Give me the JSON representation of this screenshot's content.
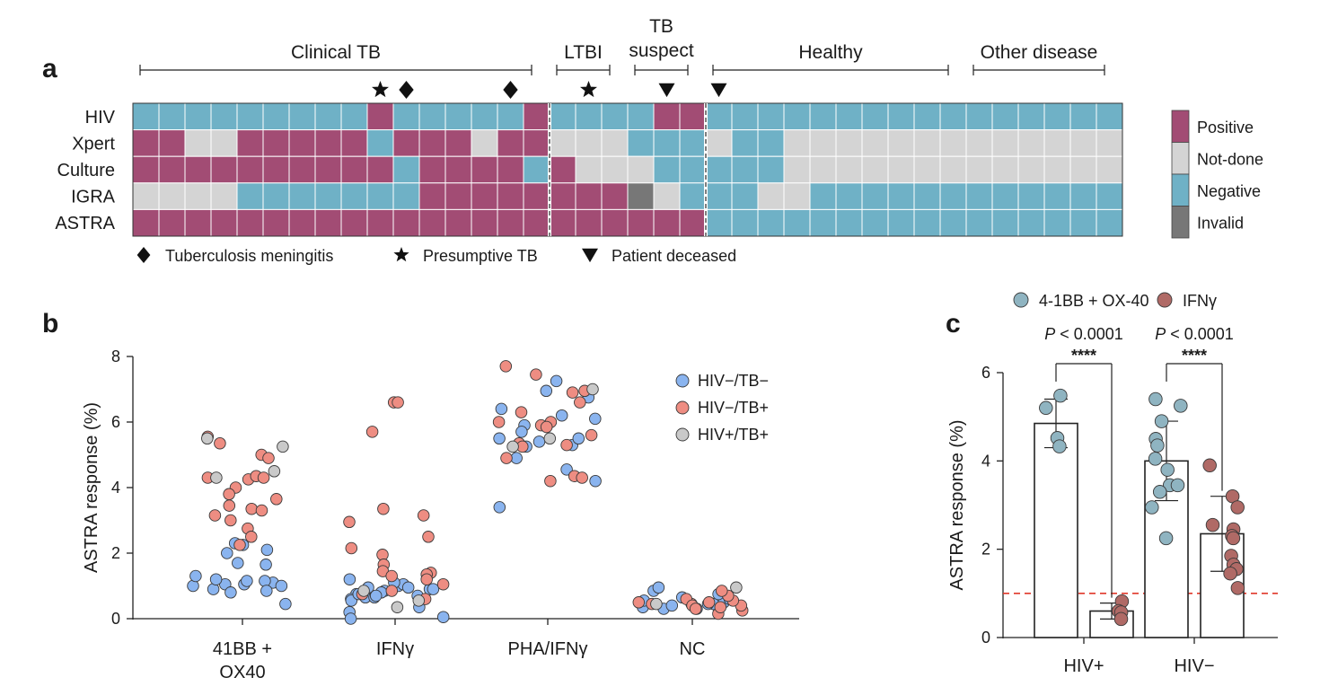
{
  "panel_labels": {
    "a": "a",
    "b": "b",
    "c": "c"
  },
  "colors": {
    "positive": "#a24c74",
    "not_done": "#d4d4d4",
    "negative": "#6fb1c6",
    "invalid": "#777777",
    "hiv_neg_tb_neg": "#8ab4ef",
    "hiv_neg_tb_pos": "#ee8d82",
    "hiv_pos_tb_pos": "#c9c9c9",
    "c_41bb_ox40": "#8fb4c1",
    "c_ifng": "#b06a66",
    "threshold": "#e0382a"
  },
  "chart_data": [
    {
      "type": "heatmap",
      "group_labels": [
        "Clinical TB",
        "LTBI",
        "TB\nsuspect",
        "Healthy",
        "Other disease"
      ],
      "group_sizes": [
        16,
        3,
        3,
        10,
        6
      ],
      "rows": [
        "HIV",
        "Xpert",
        "Culture",
        "IGRA",
        "ASTRA"
      ],
      "legend": [
        "Positive",
        "Not-done",
        "Negative",
        "Invalid"
      ],
      "symbol_legend": [
        {
          "symbol": "diamond",
          "label": "Tuberculosis meningitis"
        },
        {
          "symbol": "star",
          "label": "Presumptive TB"
        },
        {
          "symbol": "triangle-down",
          "label": "Patient deceased"
        }
      ],
      "markers": [
        {
          "column": 9,
          "symbol": "star"
        },
        {
          "column": 10,
          "symbol": "diamond"
        },
        {
          "column": 14,
          "symbol": "diamond"
        },
        {
          "column": 17,
          "symbol": "star"
        },
        {
          "column": 20,
          "symbol": "triangle-down"
        },
        {
          "column": 22,
          "symbol": "triangle-down"
        }
      ],
      "matrix": [
        "NNNNNNNNNPNNNNNPNNNNPPNNNNNNNNNNNNNNNN",
        "PPDDPPPPPNPPPDPPDDDNNNDNNDDDDDDDDDDDDD",
        "PPPPPPPPPPNPPPPNPDDDNNNNNDDDDDDDDDDDDD",
        "DDDDNNNNNNNPPPPPPPPIDNNNDDNNNNNNNNNNNN",
        "PPPPPPPPPPPPPPPPPPPPPPNNNNNNNNNNNNNNNN"
      ]
    },
    {
      "type": "scatter",
      "ylabel": "ASTRA response (%)",
      "ylim": [
        0,
        8
      ],
      "yticks": [
        0,
        2,
        4,
        6,
        8
      ],
      "categories": [
        "41BB +\nOX40",
        "IFNγ",
        "PHA/IFNγ",
        "NC"
      ],
      "series": [
        {
          "name": "HIV−/TB−",
          "points": [
            [
              0,
              1.0
            ],
            [
              0,
              1.05
            ],
            [
              0,
              1.1
            ],
            [
              0,
              1.15
            ],
            [
              0,
              1.0
            ],
            [
              0,
              1.05
            ],
            [
              0,
              1.15
            ],
            [
              0,
              0.8
            ],
            [
              0,
              0.9
            ],
            [
              0,
              1.2
            ],
            [
              0,
              1.3
            ],
            [
              0,
              1.65
            ],
            [
              0,
              2.0
            ],
            [
              0,
              2.3
            ],
            [
              0,
              2.1
            ],
            [
              0,
              0.45
            ],
            [
              0,
              1.7
            ],
            [
              0,
              2.25
            ],
            [
              0,
              0.85
            ],
            [
              1,
              0.65
            ],
            [
              1,
              0.7
            ],
            [
              1,
              0.75
            ],
            [
              1,
              0.85
            ],
            [
              1,
              0.9
            ],
            [
              1,
              0.95
            ],
            [
              1,
              1.0
            ],
            [
              1,
              1.05
            ],
            [
              1,
              1.1
            ],
            [
              1,
              0.6
            ],
            [
              1,
              0.55
            ],
            [
              1,
              0.65
            ],
            [
              1,
              0.95
            ],
            [
              1,
              1.2
            ],
            [
              1,
              0.8
            ],
            [
              1,
              0.35
            ],
            [
              1,
              0.2
            ],
            [
              1,
              0.05
            ],
            [
              1,
              0.0
            ],
            [
              1,
              0.7
            ],
            [
              1,
              0.9
            ],
            [
              1,
              0.75
            ],
            [
              2,
              7.25
            ],
            [
              2,
              6.95
            ],
            [
              2,
              6.75
            ],
            [
              2,
              6.4
            ],
            [
              2,
              6.1
            ],
            [
              2,
              5.9
            ],
            [
              2,
              5.7
            ],
            [
              2,
              5.5
            ],
            [
              2,
              5.4
            ],
            [
              2,
              5.3
            ],
            [
              2,
              5.25
            ],
            [
              2,
              4.9
            ],
            [
              2,
              4.55
            ],
            [
              2,
              4.2
            ],
            [
              2,
              3.4
            ],
            [
              2,
              6.2
            ],
            [
              2,
              5.5
            ],
            [
              3,
              0.3
            ],
            [
              3,
              0.35
            ],
            [
              3,
              0.4
            ],
            [
              3,
              0.45
            ],
            [
              3,
              0.5
            ],
            [
              3,
              0.6
            ],
            [
              3,
              0.65
            ],
            [
              3,
              0.75
            ],
            [
              3,
              0.85
            ],
            [
              3,
              0.95
            ],
            [
              3,
              0.3
            ],
            [
              3,
              0.4
            ],
            [
              3,
              0.55
            ],
            [
              3,
              0.45
            ]
          ]
        },
        {
          "name": "HIV−/TB+",
          "points": [
            [
              0,
              5.55
            ],
            [
              0,
              5.35
            ],
            [
              0,
              5.0
            ],
            [
              0,
              4.9
            ],
            [
              0,
              4.3
            ],
            [
              0,
              4.25
            ],
            [
              0,
              4.35
            ],
            [
              0,
              4.3
            ],
            [
              0,
              4.0
            ],
            [
              0,
              3.8
            ],
            [
              0,
              3.65
            ],
            [
              0,
              3.45
            ],
            [
              0,
              3.35
            ],
            [
              0,
              3.3
            ],
            [
              0,
              3.15
            ],
            [
              0,
              3.0
            ],
            [
              0,
              2.75
            ],
            [
              0,
              2.5
            ],
            [
              0,
              2.25
            ],
            [
              1,
              6.6
            ],
            [
              1,
              6.6
            ],
            [
              1,
              5.7
            ],
            [
              1,
              3.35
            ],
            [
              1,
              3.15
            ],
            [
              1,
              2.95
            ],
            [
              1,
              2.5
            ],
            [
              1,
              2.15
            ],
            [
              1,
              1.95
            ],
            [
              1,
              1.65
            ],
            [
              1,
              1.45
            ],
            [
              1,
              1.4
            ],
            [
              1,
              1.35
            ],
            [
              1,
              1.3
            ],
            [
              1,
              1.2
            ],
            [
              1,
              1.05
            ],
            [
              1,
              0.85
            ],
            [
              1,
              0.75
            ],
            [
              1,
              0.6
            ],
            [
              2,
              7.7
            ],
            [
              2,
              7.45
            ],
            [
              2,
              6.95
            ],
            [
              2,
              6.9
            ],
            [
              2,
              6.6
            ],
            [
              2,
              6.3
            ],
            [
              2,
              6.0
            ],
            [
              2,
              5.9
            ],
            [
              2,
              5.85
            ],
            [
              2,
              5.6
            ],
            [
              2,
              5.35
            ],
            [
              2,
              5.3
            ],
            [
              2,
              5.25
            ],
            [
              2,
              4.9
            ],
            [
              2,
              4.35
            ],
            [
              2,
              4.3
            ],
            [
              2,
              4.2
            ],
            [
              2,
              6.0
            ],
            [
              3,
              0.15
            ],
            [
              3,
              0.25
            ],
            [
              3,
              0.35
            ],
            [
              3,
              0.4
            ],
            [
              3,
              0.45
            ],
            [
              3,
              0.5
            ],
            [
              3,
              0.55
            ],
            [
              3,
              0.6
            ],
            [
              3,
              0.7
            ],
            [
              3,
              0.85
            ],
            [
              3,
              0.4
            ],
            [
              3,
              0.3
            ],
            [
              3,
              0.5
            ],
            [
              3,
              0.45
            ]
          ]
        },
        {
          "name": "HIV+/TB+",
          "points": [
            [
              0,
              5.5
            ],
            [
              0,
              5.25
            ],
            [
              0,
              4.5
            ],
            [
              0,
              4.3
            ],
            [
              1,
              0.85
            ],
            [
              1,
              0.55
            ],
            [
              1,
              0.35
            ],
            [
              2,
              7.0
            ],
            [
              2,
              5.5
            ],
            [
              2,
              5.25
            ],
            [
              3,
              0.95
            ],
            [
              3,
              0.45
            ]
          ]
        }
      ]
    },
    {
      "type": "bar",
      "ylabel": "ASTRA response (%)",
      "ylim": [
        0,
        6
      ],
      "yticks": [
        0,
        2,
        4,
        6
      ],
      "categories": [
        "HIV+",
        "HIV−"
      ],
      "threshold": 1.0,
      "series": [
        {
          "name": "4-1BB + OX-40",
          "values": [
            4.85,
            4.0
          ],
          "sd": [
            0.55,
            0.9
          ],
          "points": [
            [
              5.48,
              5.2,
              4.52,
              4.33
            ],
            [
              5.4,
              5.25,
              4.9,
              4.5,
              4.35,
              4.05,
              3.8,
              3.45,
              3.45,
              3.3,
              2.95,
              2.25
            ]
          ]
        },
        {
          "name": "IFNγ",
          "values": [
            0.6,
            2.35
          ],
          "sd": [
            0.18,
            0.85
          ],
          "points": [
            [
              0.82,
              0.6,
              0.57,
              0.42
            ],
            [
              3.9,
              3.2,
              2.95,
              2.55,
              2.45,
              2.3,
              2.25,
              1.85,
              1.65,
              1.55,
              1.45,
              1.12
            ]
          ]
        }
      ],
      "comparisons": [
        {
          "p_label": "P",
          "p_value": "< 0.0001",
          "stars": "****"
        },
        {
          "p_label": "P",
          "p_value": "< 0.0001",
          "stars": "****"
        }
      ]
    }
  ]
}
